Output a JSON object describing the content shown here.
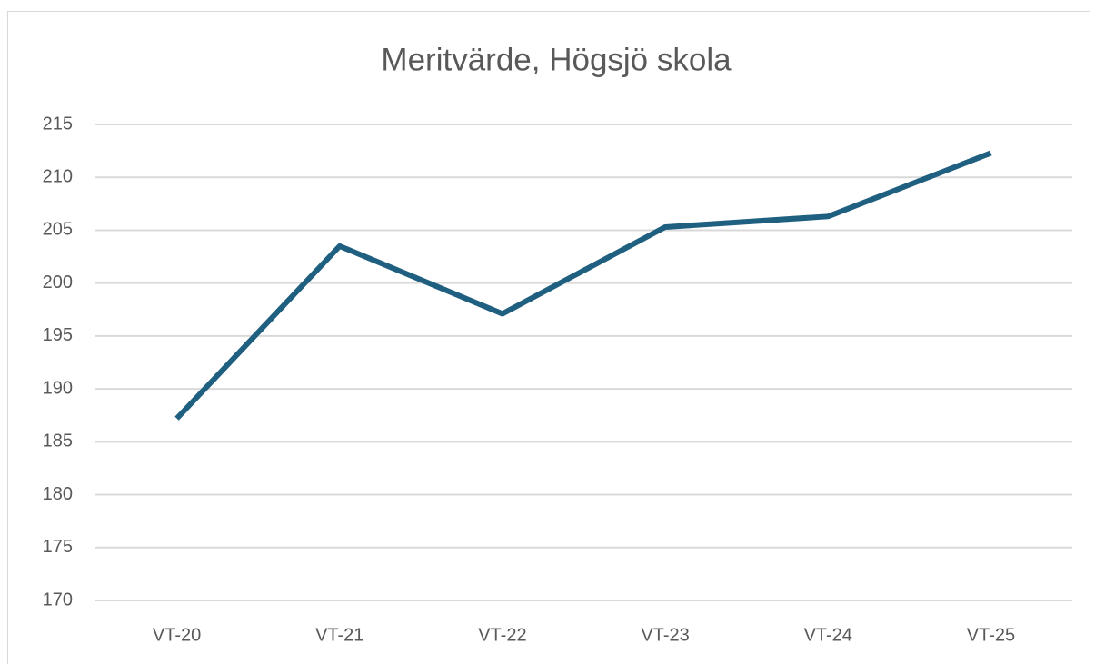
{
  "chart_data": {
    "type": "line",
    "title": "Meritvärde, Högsjö skola",
    "categories": [
      "VT-20",
      "VT-21",
      "VT-22",
      "VT-23",
      "VT-24",
      "VT-25"
    ],
    "series": [
      {
        "name": "Meritvärde",
        "color": "#1f5f80",
        "values": [
          187.2,
          203.5,
          197.1,
          205.3,
          206.3,
          212.3
        ]
      }
    ],
    "ylim": [
      170,
      215
    ],
    "yticks": [
      170,
      175,
      180,
      185,
      190,
      195,
      200,
      205,
      210,
      215
    ],
    "grid": true
  }
}
